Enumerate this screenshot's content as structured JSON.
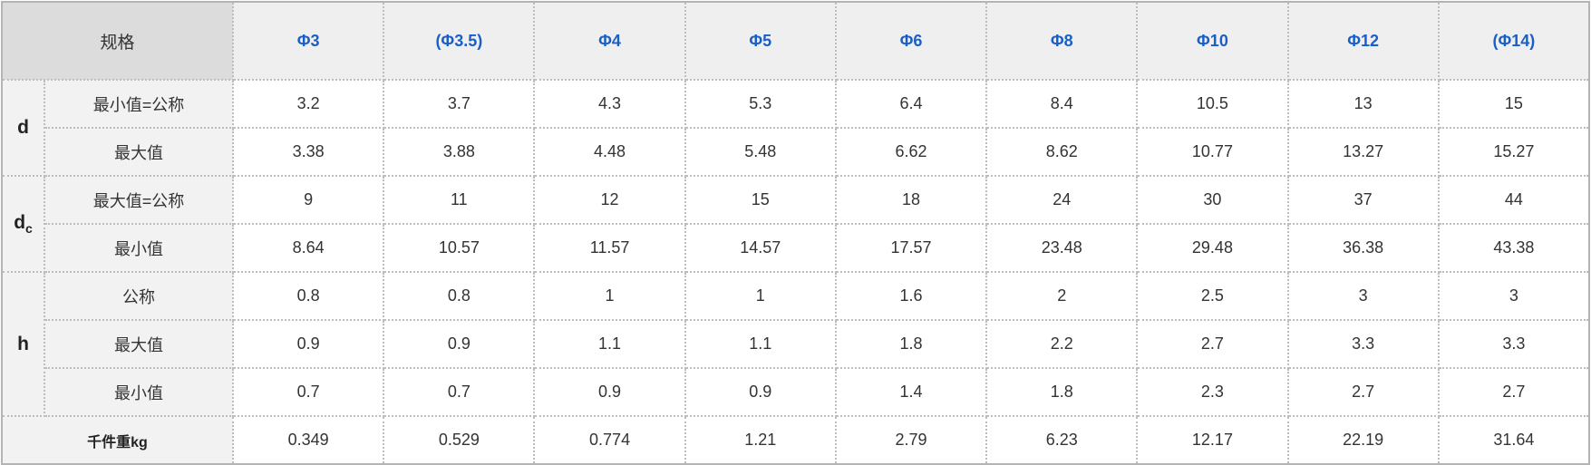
{
  "header": {
    "corner": "规格",
    "sizes": [
      "Φ3",
      "(Φ3.5)",
      "Φ4",
      "Φ5",
      "Φ6",
      "Φ8",
      "Φ10",
      "Φ12",
      "(Φ14)"
    ]
  },
  "groups": {
    "d": {
      "label": "d",
      "rows": [
        {
          "label": "最小值=公称",
          "values": [
            "3.2",
            "3.7",
            "4.3",
            "5.3",
            "6.4",
            "8.4",
            "10.5",
            "13",
            "15"
          ]
        },
        {
          "label": "最大值",
          "values": [
            "3.38",
            "3.88",
            "4.48",
            "5.48",
            "6.62",
            "8.62",
            "10.77",
            "13.27",
            "15.27"
          ]
        }
      ]
    },
    "dc": {
      "label": "d",
      "sub": "c",
      "rows": [
        {
          "label": "最大值=公称",
          "values": [
            "9",
            "11",
            "12",
            "15",
            "18",
            "24",
            "30",
            "37",
            "44"
          ]
        },
        {
          "label": "最小值",
          "values": [
            "8.64",
            "10.57",
            "11.57",
            "14.57",
            "17.57",
            "23.48",
            "29.48",
            "36.38",
            "43.38"
          ]
        }
      ]
    },
    "h": {
      "label": "h",
      "rows": [
        {
          "label": "公称",
          "values": [
            "0.8",
            "0.8",
            "1",
            "1",
            "1.6",
            "2",
            "2.5",
            "3",
            "3"
          ]
        },
        {
          "label": "最大值",
          "values": [
            "0.9",
            "0.9",
            "1.1",
            "1.1",
            "1.8",
            "2.2",
            "2.7",
            "3.3",
            "3.3"
          ]
        },
        {
          "label": "最小值",
          "values": [
            "0.7",
            "0.7",
            "0.9",
            "0.9",
            "1.4",
            "1.8",
            "2.3",
            "2.7",
            "2.7"
          ]
        }
      ]
    }
  },
  "weight": {
    "label": "千件重kg",
    "values": [
      "0.349",
      "0.529",
      "0.774",
      "1.21",
      "2.79",
      "6.23",
      "12.17",
      "22.19",
      "31.64"
    ]
  },
  "colors": {
    "header_text": "#1a5fc8",
    "header_bg": "#efefef",
    "label_bg": "#f2f2f2",
    "border": "#bdbdbd"
  }
}
